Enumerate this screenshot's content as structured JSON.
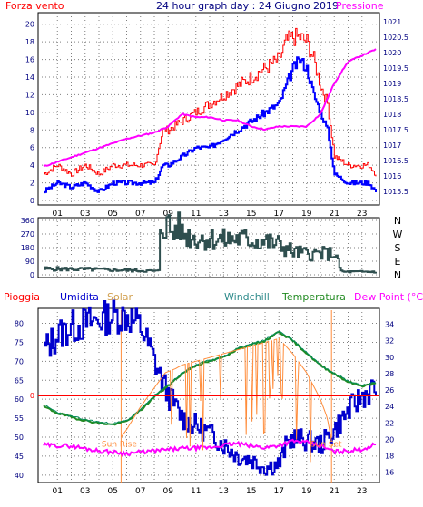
{
  "colors": {
    "frame": "#000000",
    "grid": "#7f7f7f",
    "axis_text": "#000080",
    "wind": "#ff0000",
    "gust": "#0000ff",
    "pressure": "#ff00ff",
    "direction": "#2f4f4f",
    "rain": "#ff0000",
    "humidity": "#0000cd",
    "solar": "#ff8c3a",
    "windchill": "#008b5a",
    "temperature": "#228b22",
    "dewpoint": "#ff00ff",
    "sun_marker": "#ff8c3a"
  },
  "chart_data": [
    {
      "type": "line",
      "title": "24 hour graph day : 24 Giugno 2019",
      "left_label": "Forza vento",
      "right_label": "Pressione",
      "ylim": [
        0,
        21
      ],
      "yticks": [
        0,
        2,
        4,
        6,
        8,
        10,
        12,
        14,
        16,
        18,
        20
      ],
      "y2lim": [
        1015.2,
        1021.2
      ],
      "y2ticks": [
        "1015.5",
        "1016",
        "1016.5",
        "1017",
        "1017.5",
        "1018",
        "1018.5",
        "1019",
        "1019.5",
        "1020",
        "1020.5",
        "1021"
      ],
      "xticks": [
        "01",
        "03",
        "05",
        "07",
        "09",
        "11",
        "13",
        "15",
        "17",
        "19",
        "21",
        "23"
      ],
      "grid": true,
      "series": [
        {
          "key": "wind",
          "x": [
            0,
            1,
            2,
            3,
            4,
            5,
            6,
            7,
            8,
            8.6,
            9,
            10,
            11,
            12,
            13,
            14,
            15,
            16,
            17,
            17.5,
            18,
            18.5,
            19,
            19.5,
            20,
            20.5,
            21,
            22,
            23,
            23.5,
            24
          ],
          "values": [
            1,
            2,
            1.5,
            2,
            1,
            2,
            2,
            2,
            2,
            4,
            4,
            5,
            6,
            6,
            7,
            8,
            9,
            10,
            11,
            13,
            15,
            16,
            15,
            12,
            10,
            8,
            3,
            2,
            2,
            2,
            1
          ]
        },
        {
          "key": "gust",
          "x": [
            0,
            1,
            2,
            3,
            4,
            5,
            6,
            7,
            8,
            8.6,
            9,
            10,
            11,
            12,
            13,
            14,
            15,
            16,
            17,
            17.5,
            18,
            18.5,
            19,
            19.5,
            20,
            20.5,
            21,
            22,
            23,
            23.5,
            24
          ],
          "values": [
            3,
            4,
            3,
            4,
            3,
            4,
            4,
            4,
            4,
            8,
            8,
            9,
            10,
            11,
            12,
            13,
            14,
            15,
            16,
            18,
            18.5,
            18.5,
            18,
            16,
            13,
            11,
            5,
            4,
            4,
            4,
            3
          ]
        },
        {
          "name": "Pressione",
          "key": "pressure",
          "axis": "right",
          "x": [
            0,
            2,
            4,
            6,
            8,
            9,
            10,
            11,
            12,
            13,
            14,
            15,
            16,
            17,
            18,
            19,
            20,
            21,
            22,
            23,
            24
          ],
          "values": [
            1016.3,
            1016.6,
            1016.9,
            1017.2,
            1017.4,
            1017.6,
            1018.0,
            1017.9,
            1017.9,
            1017.8,
            1017.8,
            1017.6,
            1017.5,
            1017.6,
            1017.6,
            1017.6,
            1018.0,
            1019.0,
            1019.7,
            1019.9,
            1020.1
          ]
        }
      ]
    },
    {
      "type": "line",
      "yticks": [
        0,
        90,
        180,
        270,
        360
      ],
      "ylim": [
        0,
        360
      ],
      "right_labels": [
        "N",
        "W",
        "S",
        "E",
        "N"
      ],
      "grid": true,
      "series": [
        {
          "key": "direction",
          "x": [
            0,
            2,
            4,
            6,
            7,
            8,
            8.3,
            8.4,
            9,
            9.3,
            9.6,
            10,
            11,
            12,
            13,
            14,
            15,
            16,
            17,
            18,
            19,
            20,
            21,
            21.5,
            22,
            23,
            24
          ],
          "values": [
            40,
            38,
            35,
            30,
            27,
            25,
            25,
            320,
            330,
            260,
            330,
            270,
            240,
            240,
            230,
            240,
            230,
            220,
            200,
            150,
            140,
            140,
            140,
            20,
            20,
            20,
            20
          ]
        }
      ]
    },
    {
      "type": "line",
      "top_labels": [
        "Pioggia",
        "Umidita",
        "Solar",
        "Windchill",
        "Temperatura",
        "Dew Point (°C)"
      ],
      "ylim": [
        39,
        83
      ],
      "yticks": [
        40,
        45,
        50,
        55,
        60,
        65,
        70,
        75,
        80
      ],
      "y2lim": [
        15.2,
        35.5
      ],
      "y2ticks": [
        16,
        18,
        20,
        22,
        24,
        26,
        28,
        30,
        32,
        34
      ],
      "rain_zero_label": "0",
      "xticks": [
        "01",
        "03",
        "05",
        "07",
        "09",
        "11",
        "13",
        "15",
        "17",
        "19",
        "21",
        "23"
      ],
      "grid": true,
      "annotations": {
        "sunrise": "Sun Rise",
        "sunset": "Sun Set",
        "sunrise_hour": 5.6,
        "sunset_hour": 20.8
      },
      "series": [
        {
          "name": "Umidita",
          "key": "humidity",
          "axis": "left",
          "x": [
            0,
            0.5,
            1,
            2,
            3,
            4,
            5,
            6,
            7,
            8,
            8.5,
            9,
            10,
            11,
            12,
            13,
            14,
            15,
            16,
            17,
            17.5,
            18,
            19,
            20,
            21,
            22,
            23,
            24
          ],
          "values": [
            73,
            75,
            77,
            79,
            80,
            81,
            82,
            82,
            79,
            70,
            65,
            61,
            55,
            53,
            51,
            48,
            45,
            44,
            42,
            43,
            48,
            50,
            49,
            48,
            52,
            57,
            61,
            63
          ]
        },
        {
          "name": "Temperatura",
          "key": "temperature",
          "axis": "right",
          "x": [
            0,
            1,
            2,
            3,
            4,
            5,
            6,
            7,
            8,
            9,
            10,
            11,
            12,
            13,
            14,
            15,
            16,
            17,
            18,
            19,
            20,
            21,
            22,
            23,
            24
          ],
          "values": [
            24,
            23.2,
            22.7,
            22.3,
            22,
            21.8,
            22.2,
            23.5,
            25.2,
            26.5,
            28,
            29,
            29.5,
            30,
            31,
            31.5,
            32,
            33.1,
            32,
            30.5,
            29,
            28,
            27,
            26.5,
            26.8
          ]
        },
        {
          "name": "Windchill",
          "key": "windchill",
          "axis": "right",
          "x": [
            0,
            1,
            2,
            3,
            4,
            5,
            6,
            7,
            8,
            9,
            10,
            11,
            12,
            13,
            14,
            15,
            16,
            17,
            18,
            19,
            20,
            21,
            22,
            23,
            24
          ],
          "values": [
            24.2,
            23.3,
            22.8,
            22.4,
            22.1,
            21.9,
            22.3,
            23.6,
            25.3,
            26.6,
            28.1,
            29.1,
            29.6,
            30.1,
            31.1,
            31.6,
            32.1,
            33.2,
            32.1,
            30.6,
            29.1,
            28.1,
            27.1,
            26.6,
            26.9
          ]
        },
        {
          "name": "Dew Point (°C)",
          "key": "dewpoint",
          "axis": "right",
          "x": [
            0,
            2,
            4,
            6,
            8,
            10,
            12,
            13,
            14,
            15,
            16,
            17,
            18,
            19,
            20,
            21,
            22,
            23,
            24
          ],
          "values": [
            19.3,
            19.2,
            18.6,
            18.3,
            18.6,
            18.9,
            19,
            19.3,
            19.5,
            19.2,
            19,
            19.3,
            19.8,
            19.6,
            19.2,
            18.5,
            18.6,
            18.8,
            19.4
          ]
        },
        {
          "name": "Solar",
          "key": "solar",
          "axis": "left",
          "x": [
            5.6,
            6,
            7,
            8,
            8.8,
            9.5,
            10,
            11,
            12,
            13,
            14,
            15,
            16,
            17,
            18,
            19,
            20,
            20.5,
            20.8
          ],
          "values": [
            50,
            52,
            58,
            63,
            67,
            68,
            69,
            70,
            71,
            72,
            73,
            74,
            75,
            76,
            72,
            67,
            60,
            55,
            49
          ]
        },
        {
          "name": "Pioggia",
          "key": "rain",
          "axis": "left",
          "x": [
            0,
            24
          ],
          "values": [
            61,
            61
          ]
        }
      ]
    }
  ]
}
